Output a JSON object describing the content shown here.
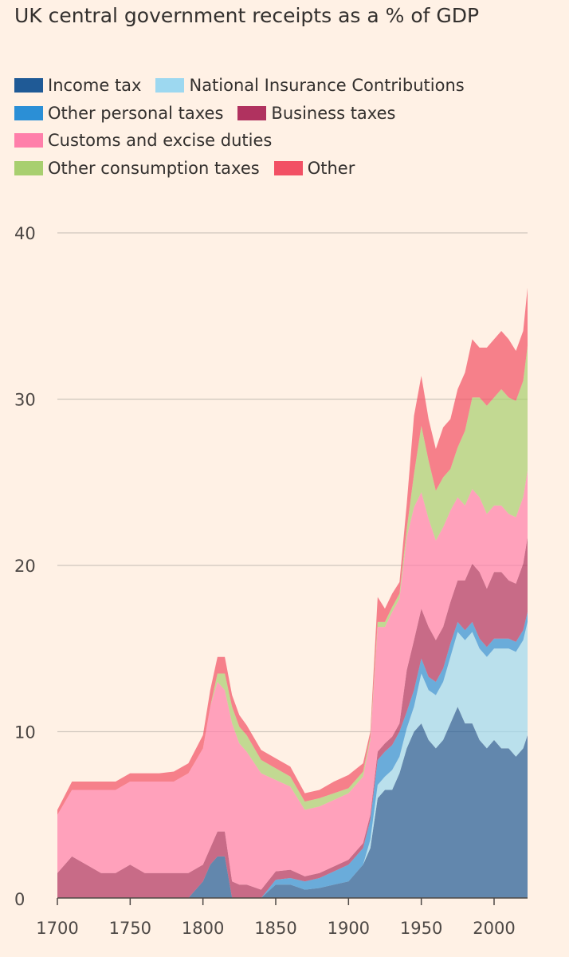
{
  "title": "UK central government receipts as a % of GDP",
  "legend": [
    {
      "label": "Income tax",
      "color": "#1f5a96"
    },
    {
      "label": "National Insurance Contributions",
      "color": "#9dd8f0"
    },
    {
      "label": "Other personal taxes",
      "color": "#2b8fd6"
    },
    {
      "label": "Business taxes",
      "color": "#b0325f"
    },
    {
      "label": "Customs and excise duties",
      "color": "#ff7faa"
    },
    {
      "label": "Other consumption taxes",
      "color": "#a8cf6f"
    },
    {
      "label": "Other",
      "color": "#f25064"
    }
  ],
  "chart_data": {
    "type": "area",
    "stacked": true,
    "title": "UK central government receipts as a % of GDP",
    "xlabel": "",
    "ylabel": "",
    "x": [
      1700,
      1710,
      1720,
      1730,
      1740,
      1750,
      1760,
      1770,
      1780,
      1790,
      1800,
      1805,
      1810,
      1815,
      1820,
      1825,
      1830,
      1840,
      1850,
      1860,
      1870,
      1880,
      1890,
      1900,
      1910,
      1915,
      1920,
      1925,
      1930,
      1935,
      1940,
      1945,
      1950,
      1955,
      1960,
      1965,
      1970,
      1975,
      1980,
      1985,
      1990,
      1995,
      2000,
      2005,
      2010,
      2015,
      2020,
      2023
    ],
    "xlim": [
      1700,
      2023
    ],
    "ylim": [
      0,
      40
    ],
    "x_ticks": [
      1700,
      1750,
      1800,
      1850,
      1900,
      1950,
      2000
    ],
    "y_ticks": [
      0,
      10,
      20,
      30,
      40
    ],
    "grid": "horizontal",
    "legend_position": "top",
    "series": [
      {
        "name": "Income tax",
        "values": [
          0,
          0,
          0,
          0,
          0,
          0,
          0,
          0,
          0,
          0,
          1.0,
          2.0,
          2.5,
          2.5,
          0,
          0,
          0,
          0,
          0.8,
          0.8,
          0.5,
          0.6,
          0.8,
          1.0,
          2.0,
          3.0,
          6.0,
          6.5,
          6.5,
          7.5,
          9.0,
          10.0,
          10.5,
          9.5,
          9.0,
          9.5,
          10.5,
          11.5,
          10.5,
          10.5,
          9.5,
          9.0,
          9.5,
          9.0,
          9.0,
          8.5,
          9.0,
          9.8
        ]
      },
      {
        "name": "National Insurance Contributions",
        "values": [
          0,
          0,
          0,
          0,
          0,
          0,
          0,
          0,
          0,
          0,
          0,
          0,
          0,
          0,
          0,
          0,
          0,
          0,
          0,
          0,
          0,
          0,
          0,
          0,
          0,
          0.5,
          0.8,
          0.8,
          1.2,
          1.0,
          1.2,
          1.5,
          3.0,
          3.0,
          3.2,
          3.5,
          4.0,
          4.5,
          5.0,
          5.5,
          5.5,
          5.5,
          5.5,
          6.0,
          6.0,
          6.3,
          6.5,
          6.8
        ]
      },
      {
        "name": "Other personal taxes",
        "values": [
          0,
          0,
          0,
          0,
          0,
          0,
          0,
          0,
          0,
          0,
          0,
          0,
          0,
          0,
          0,
          0,
          0,
          0,
          0.3,
          0.4,
          0.5,
          0.6,
          0.8,
          1.0,
          1.0,
          1.2,
          1.5,
          1.5,
          1.5,
          1.5,
          1.0,
          1.0,
          0.9,
          0.8,
          0.8,
          0.8,
          0.8,
          0.6,
          0.6,
          0.6,
          0.6,
          0.6,
          0.6,
          0.6,
          0.6,
          0.6,
          0.6,
          0.6
        ]
      },
      {
        "name": "Business taxes",
        "values": [
          1.5,
          2.5,
          2.0,
          1.5,
          1.5,
          2.0,
          1.5,
          1.5,
          1.5,
          1.5,
          1.0,
          1.0,
          1.5,
          1.5,
          1.0,
          0.8,
          0.8,
          0.5,
          0.5,
          0.5,
          0.3,
          0.3,
          0.3,
          0.3,
          0.3,
          0.3,
          0.5,
          0.5,
          0.5,
          0.5,
          2.5,
          3.0,
          3.0,
          3.0,
          2.5,
          2.5,
          2.5,
          2.5,
          3.0,
          3.5,
          4.0,
          3.5,
          4.0,
          4.0,
          3.5,
          3.5,
          4.0,
          4.5
        ]
      },
      {
        "name": "Customs and excise duties",
        "values": [
          3.5,
          4.0,
          4.5,
          5.0,
          5.0,
          5.0,
          5.5,
          5.5,
          5.5,
          6.0,
          7.0,
          8.5,
          9.0,
          8.5,
          9.5,
          8.5,
          8.0,
          7.0,
          5.5,
          5.0,
          4.0,
          4.0,
          4.0,
          4.0,
          4.0,
          4.5,
          7.5,
          7.0,
          7.5,
          7.5,
          8.0,
          8.0,
          7.0,
          6.5,
          6.0,
          6.0,
          5.5,
          5.0,
          4.5,
          4.5,
          4.5,
          4.5,
          4.0,
          4.0,
          4.0,
          4.0,
          4.0,
          4.0
        ]
      },
      {
        "name": "Other consumption taxes",
        "values": [
          0,
          0,
          0,
          0,
          0,
          0,
          0,
          0,
          0,
          0,
          0,
          0,
          0.5,
          1.0,
          1.0,
          1.0,
          1.0,
          0.8,
          0.7,
          0.6,
          0.5,
          0.5,
          0.4,
          0.3,
          0.3,
          0.2,
          0.3,
          0.3,
          0.3,
          0.3,
          0.5,
          2.0,
          4.0,
          3.5,
          3.0,
          3.0,
          2.5,
          3.0,
          4.5,
          5.5,
          6.0,
          6.5,
          6.5,
          7.0,
          7.0,
          7.0,
          7.0,
          7.5
        ]
      },
      {
        "name": "Other",
        "values": [
          0.3,
          0.5,
          0.5,
          0.5,
          0.5,
          0.5,
          0.5,
          0.5,
          0.6,
          0.6,
          0.8,
          1.0,
          1.0,
          1.0,
          0.7,
          0.7,
          0.6,
          0.6,
          0.6,
          0.6,
          0.5,
          0.5,
          0.7,
          0.8,
          0.5,
          0.3,
          1.5,
          0.8,
          0.8,
          0.7,
          1.5,
          3.5,
          3.0,
          2.5,
          2.5,
          3.0,
          3.0,
          3.5,
          3.5,
          3.5,
          3.0,
          3.5,
          3.5,
          3.5,
          3.5,
          3.0,
          3.0,
          3.5
        ]
      }
    ]
  }
}
